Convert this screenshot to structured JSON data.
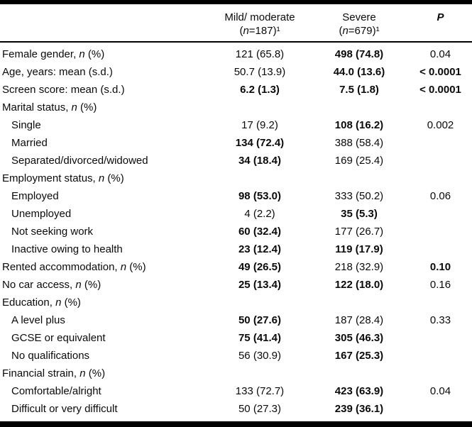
{
  "colors": {
    "background": "#ffffff",
    "text": "#0a0a0a",
    "rule": "#000000"
  },
  "table": {
    "header": {
      "mild_line1": "Mild/ moderate",
      "mild_line2": "({n}=187)¹",
      "severe_line1": "Severe",
      "severe_line2": "({n}=679)¹",
      "p_label": "P"
    },
    "rows": [
      {
        "label": "Female gender, {n} (%)",
        "indent": false,
        "mild": "121 (65.8)",
        "severe": "498 (74.8)",
        "p": "0.04",
        "bold": {
          "mild": false,
          "severe": true,
          "p": false
        }
      },
      {
        "label": "Age, years: mean (s.d.)",
        "indent": false,
        "mild": "50.7 (13.9)",
        "severe": "44.0 (13.6)",
        "p": "< 0.0001",
        "bold": {
          "mild": false,
          "severe": true,
          "p": true
        }
      },
      {
        "label": "Screen score: mean (s.d.)",
        "indent": false,
        "mild": "6.2 (1.3)",
        "severe": "7.5 (1.8)",
        "p": "< 0.0001",
        "bold": {
          "mild": true,
          "severe": true,
          "p": true
        }
      },
      {
        "label": "Marital status, {n} (%)",
        "indent": false,
        "mild": "",
        "severe": "",
        "p": "",
        "bold": {
          "mild": false,
          "severe": false,
          "p": false
        }
      },
      {
        "label": "Single",
        "indent": true,
        "mild": "17 (9.2)",
        "severe": "108 (16.2)",
        "p": "0.002",
        "bold": {
          "mild": false,
          "severe": true,
          "p": false
        }
      },
      {
        "label": "Married",
        "indent": true,
        "mild": "134 (72.4)",
        "severe": "388 (58.4)",
        "p": "",
        "bold": {
          "mild": true,
          "severe": false,
          "p": false
        }
      },
      {
        "label": "Separated/divorced/widowed",
        "indent": true,
        "mild": "34 (18.4)",
        "severe": "169 (25.4)",
        "p": "",
        "bold": {
          "mild": true,
          "severe": false,
          "p": false
        }
      },
      {
        "label": "Employment status, {n} (%)",
        "indent": false,
        "mild": "",
        "severe": "",
        "p": "",
        "bold": {
          "mild": false,
          "severe": false,
          "p": false
        }
      },
      {
        "label": "Employed",
        "indent": true,
        "mild": "98 (53.0)",
        "severe": "333 (50.2)",
        "p": "0.06",
        "bold": {
          "mild": true,
          "severe": false,
          "p": false
        }
      },
      {
        "label": "Unemployed",
        "indent": true,
        "mild": "4 (2.2)",
        "severe": "35 (5.3)",
        "p": "",
        "bold": {
          "mild": false,
          "severe": true,
          "p": false
        }
      },
      {
        "label": "Not seeking work",
        "indent": true,
        "mild": "60 (32.4)",
        "severe": "177 (26.7)",
        "p": "",
        "bold": {
          "mild": true,
          "severe": false,
          "p": false
        }
      },
      {
        "label": "Inactive owing to health",
        "indent": true,
        "mild": "23 (12.4)",
        "severe": "119 (17.9)",
        "p": "",
        "bold": {
          "mild": true,
          "severe": true,
          "p": false
        }
      },
      {
        "label": "Rented accommodation, {n} (%)",
        "indent": false,
        "mild": "49 (26.5)",
        "severe": "218 (32.9)",
        "p": "0.10",
        "bold": {
          "mild": true,
          "severe": false,
          "p": true
        }
      },
      {
        "label": "No car access, {n} (%)",
        "indent": false,
        "mild": "25 (13.4)",
        "severe": "122 (18.0)",
        "p": "0.16",
        "bold": {
          "mild": true,
          "severe": true,
          "p": false
        }
      },
      {
        "label": "Education, {n} (%)",
        "indent": false,
        "mild": "",
        "severe": "",
        "p": "",
        "bold": {
          "mild": false,
          "severe": false,
          "p": false
        }
      },
      {
        "label": "A level plus",
        "indent": true,
        "mild": "50 (27.6)",
        "severe": "187 (28.4)",
        "p": "0.33",
        "bold": {
          "mild": true,
          "severe": false,
          "p": false
        }
      },
      {
        "label": "GCSE or equivalent",
        "indent": true,
        "mild": "75 (41.4)",
        "severe": "305 (46.3)",
        "p": "",
        "bold": {
          "mild": true,
          "severe": true,
          "p": false
        }
      },
      {
        "label": "No qualifications",
        "indent": true,
        "mild": "56 (30.9)",
        "severe": "167 (25.3)",
        "p": "",
        "bold": {
          "mild": false,
          "severe": true,
          "p": false
        }
      },
      {
        "label": "Financial strain, {n} (%)",
        "indent": false,
        "mild": "",
        "severe": "",
        "p": "",
        "bold": {
          "mild": false,
          "severe": false,
          "p": false
        }
      },
      {
        "label": "Comfortable/alright",
        "indent": true,
        "mild": "133 (72.7)",
        "severe": "423 (63.9)",
        "p": "0.04",
        "bold": {
          "mild": false,
          "severe": true,
          "p": false
        }
      },
      {
        "label": "Difficult or very difficult",
        "indent": true,
        "mild": "50 (27.3)",
        "severe": "239 (36.1)",
        "p": "",
        "bold": {
          "mild": false,
          "severe": true,
          "p": false
        }
      }
    ]
  }
}
